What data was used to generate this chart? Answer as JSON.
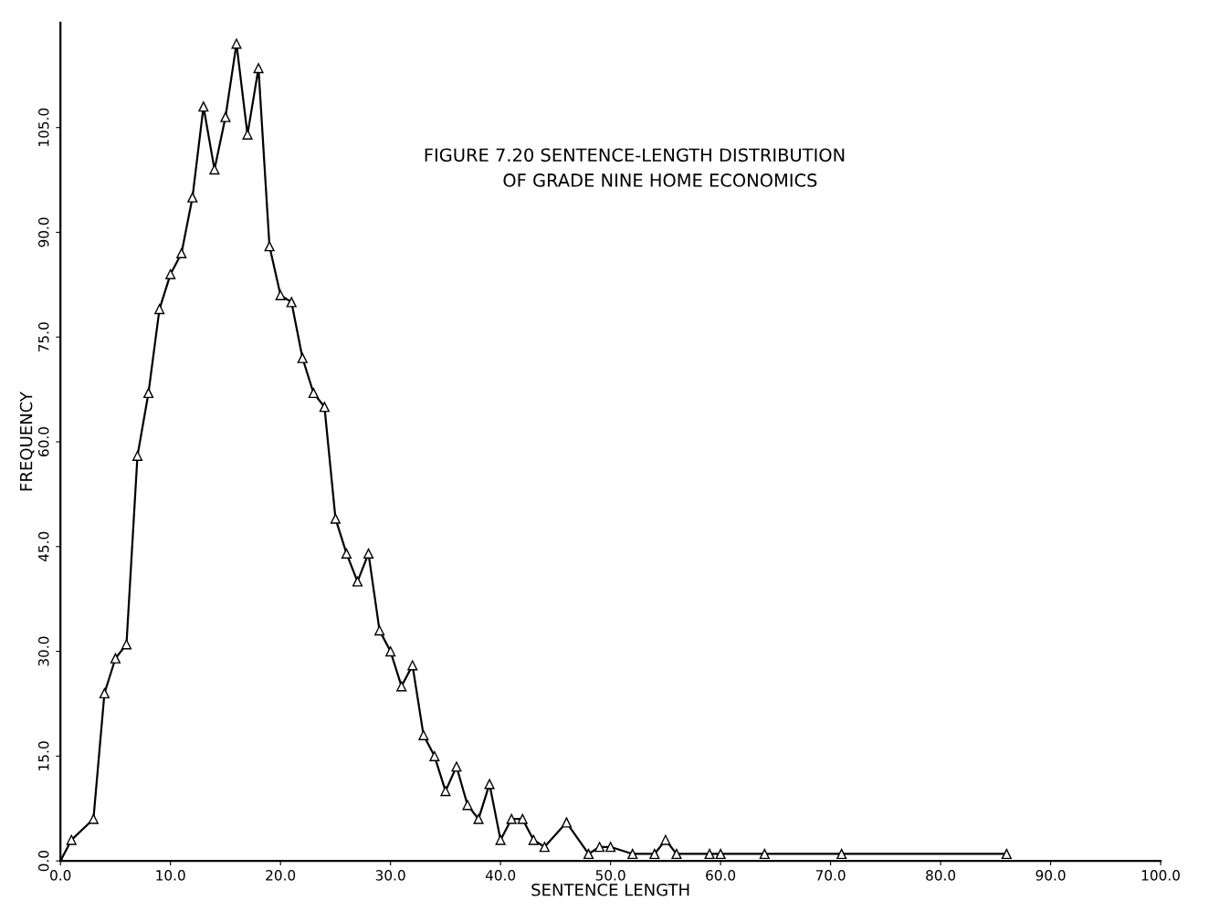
{
  "chart_data": {
    "type": "line",
    "title": "FIGURE 7.20 SENTENCE-LENGTH DISTRIBUTION\n              OF GRADE NINE HOME ECONOMICS",
    "xlabel": "SENTENCE LENGTH",
    "ylabel": "FREQUENCY",
    "x": [
      0,
      1,
      3,
      4,
      5,
      6,
      7,
      8,
      9,
      10,
      11,
      12,
      13,
      14,
      15,
      16,
      17,
      18,
      19,
      20,
      21,
      22,
      23,
      24,
      25,
      26,
      27,
      28,
      29,
      30,
      31,
      32,
      33,
      34,
      35,
      36,
      37,
      38,
      39,
      40,
      41,
      42,
      43,
      44,
      46,
      48,
      49,
      50,
      52,
      54,
      55,
      56,
      59,
      60,
      64,
      71,
      86
    ],
    "series": [
      {
        "color": "#000000",
        "values": [
          0,
          3,
          6,
          24,
          29,
          31,
          58,
          67,
          79,
          84,
          87,
          95,
          108,
          99,
          106.5,
          117,
          104,
          113.5,
          88,
          81,
          80,
          72,
          67,
          65,
          49,
          44,
          40,
          44,
          33,
          30,
          25,
          28,
          18,
          15,
          10,
          13.5,
          8,
          6,
          11,
          3,
          6,
          6,
          3,
          2,
          5.5,
          1,
          2,
          2,
          1,
          1,
          3,
          1,
          1,
          1,
          1,
          1,
          1
        ]
      }
    ],
    "xlim": [
      0,
      100
    ],
    "ylim": [
      0,
      120
    ],
    "xticks": [
      {
        "value": 0,
        "label": "0.0"
      },
      {
        "value": 10,
        "label": "10.0"
      },
      {
        "value": 20,
        "label": "20.0"
      },
      {
        "value": 30,
        "label": "30.0"
      },
      {
        "value": 40,
        "label": "40.0"
      },
      {
        "value": 50,
        "label": "50.0"
      },
      {
        "value": 60,
        "label": "60.0"
      },
      {
        "value": 70,
        "label": "70.0"
      },
      {
        "value": 80,
        "label": "80.0"
      },
      {
        "value": 90,
        "label": "90.0"
      },
      {
        "value": 100,
        "label": "100.0"
      }
    ],
    "yticks": [
      {
        "value": 0,
        "label": "0.0"
      },
      {
        "value": 15,
        "label": "15.0"
      },
      {
        "value": 30,
        "label": "30.0"
      },
      {
        "value": 45,
        "label": "45.0"
      },
      {
        "value": 60,
        "label": "60.0"
      },
      {
        "value": 75,
        "label": "75.0"
      },
      {
        "value": 90,
        "label": "90.0"
      },
      {
        "value": 105,
        "label": "105.0"
      }
    ],
    "marker": "triangle",
    "line_style": "solid",
    "grid": false,
    "legend": false
  }
}
